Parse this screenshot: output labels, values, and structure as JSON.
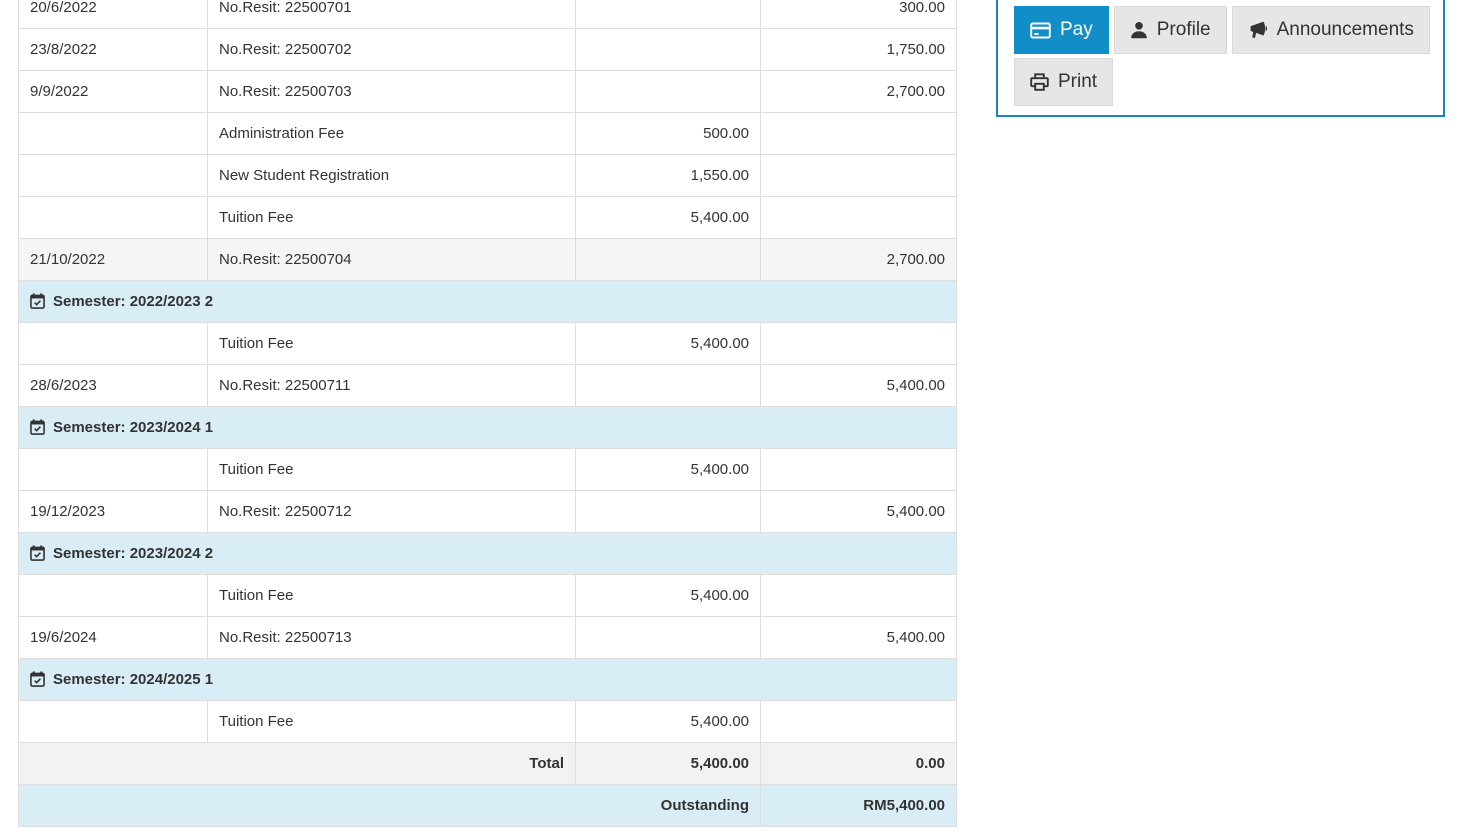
{
  "actions_panel": {
    "buttons": [
      {
        "label": "Pay",
        "icon": "credit-card-icon",
        "style": "primary"
      },
      {
        "label": "Profile",
        "icon": "user-icon",
        "style": "default"
      },
      {
        "label": "Announcements",
        "icon": "bullhorn-icon",
        "style": "default"
      },
      {
        "label": "Print",
        "icon": "print-icon",
        "style": "default"
      }
    ]
  },
  "colors": {
    "accent_blue": "#118dc7",
    "panel_border": "#1a86b8",
    "semester_row_bg": "#d9edf7",
    "outstanding_row_bg": "#d9edf7",
    "striped_row_bg": "#f5f5f5",
    "total_row_bg": "#f2f2f2",
    "table_border": "#dddddd",
    "text": "#333333"
  },
  "fee_table": {
    "semester_icon": "calendar-check-icon",
    "rows": [
      {
        "type": "data",
        "date": "20/6/2022",
        "description": "No.Resit: 22500701",
        "charge": "",
        "payment": "300.00"
      },
      {
        "type": "data",
        "date": "23/8/2022",
        "description": "No.Resit: 22500702",
        "charge": "",
        "payment": "1,750.00"
      },
      {
        "type": "data",
        "date": "9/9/2022",
        "description": "No.Resit: 22500703",
        "charge": "",
        "payment": "2,700.00"
      },
      {
        "type": "data",
        "date": "",
        "description": "Administration Fee",
        "charge": "500.00",
        "payment": ""
      },
      {
        "type": "data",
        "date": "",
        "description": "New Student Registration",
        "charge": "1,550.00",
        "payment": ""
      },
      {
        "type": "data",
        "date": "",
        "description": "Tuition Fee",
        "charge": "5,400.00",
        "payment": ""
      },
      {
        "type": "data",
        "date": "21/10/2022",
        "description": "No.Resit: 22500704",
        "charge": "",
        "payment": "2,700.00",
        "shaded": true
      },
      {
        "type": "semester",
        "label": "Semester: 2022/2023 2"
      },
      {
        "type": "data",
        "date": "",
        "description": "Tuition Fee",
        "charge": "5,400.00",
        "payment": ""
      },
      {
        "type": "data",
        "date": "28/6/2023",
        "description": "No.Resit: 22500711",
        "charge": "",
        "payment": "5,400.00"
      },
      {
        "type": "semester",
        "label": "Semester: 2023/2024 1"
      },
      {
        "type": "data",
        "date": "",
        "description": "Tuition Fee",
        "charge": "5,400.00",
        "payment": ""
      },
      {
        "type": "data",
        "date": "19/12/2023",
        "description": "No.Resit: 22500712",
        "charge": "",
        "payment": "5,400.00"
      },
      {
        "type": "semester",
        "label": "Semester: 2023/2024 2"
      },
      {
        "type": "data",
        "date": "",
        "description": "Tuition Fee",
        "charge": "5,400.00",
        "payment": ""
      },
      {
        "type": "data",
        "date": "19/6/2024",
        "description": "No.Resit: 22500713",
        "charge": "",
        "payment": "5,400.00"
      },
      {
        "type": "semester",
        "label": "Semester: 2024/2025 1"
      },
      {
        "type": "data",
        "date": "",
        "description": "Tuition Fee",
        "charge": "5,400.00",
        "payment": ""
      },
      {
        "type": "total",
        "label": "Total",
        "charge": "5,400.00",
        "payment": "0.00"
      },
      {
        "type": "outstanding",
        "label": "Outstanding",
        "payment": "RM5,400.00"
      }
    ]
  }
}
